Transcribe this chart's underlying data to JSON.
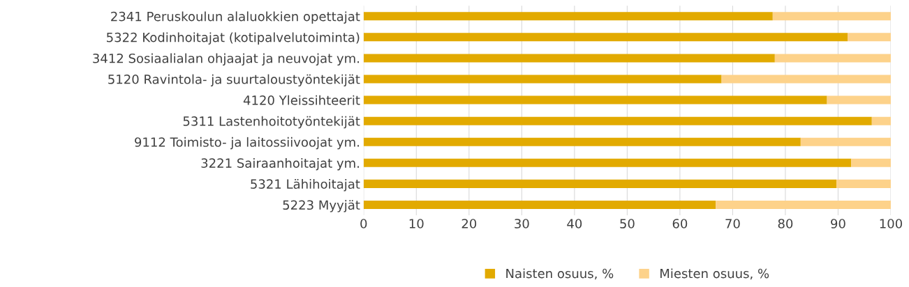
{
  "chart_data": {
    "type": "bar",
    "orientation": "horizontal",
    "stacked": true,
    "categories": [
      "2341 Peruskoulun alaluokkien opettajat",
      "5322 Kodinhoitajat (kotipalvelutoiminta)",
      "3412 Sosiaalialan ohjaajat ja neuvojat ym.",
      "5120 Ravintola- ja suurtaloustyöntekijät",
      "4120 Yleissihteerit",
      "5311 Lastenhoitotyöntekijät",
      "9112 Toimisto- ja laitossiivoojat ym.",
      "3221 Sairaanhoitajat ym.",
      "5321 Lähihoitajat",
      "5223 Myyjät"
    ],
    "series": [
      {
        "name": "Naisten osuus, %",
        "color": "#e2aa00",
        "values": [
          77.6,
          91.8,
          78.0,
          67.9,
          87.9,
          96.4,
          82.9,
          92.5,
          89.7,
          66.8
        ]
      },
      {
        "name": "Miesten osuus, %",
        "color": "#fdd28a",
        "values": [
          22.4,
          8.2,
          22.0,
          32.1,
          12.1,
          3.6,
          17.1,
          7.5,
          10.3,
          33.2
        ]
      }
    ],
    "xlim": [
      0,
      100
    ],
    "xticks": [
      0,
      10,
      20,
      30,
      40,
      50,
      60,
      70,
      80,
      90,
      100
    ],
    "grid": "x",
    "legend": "bottom"
  }
}
